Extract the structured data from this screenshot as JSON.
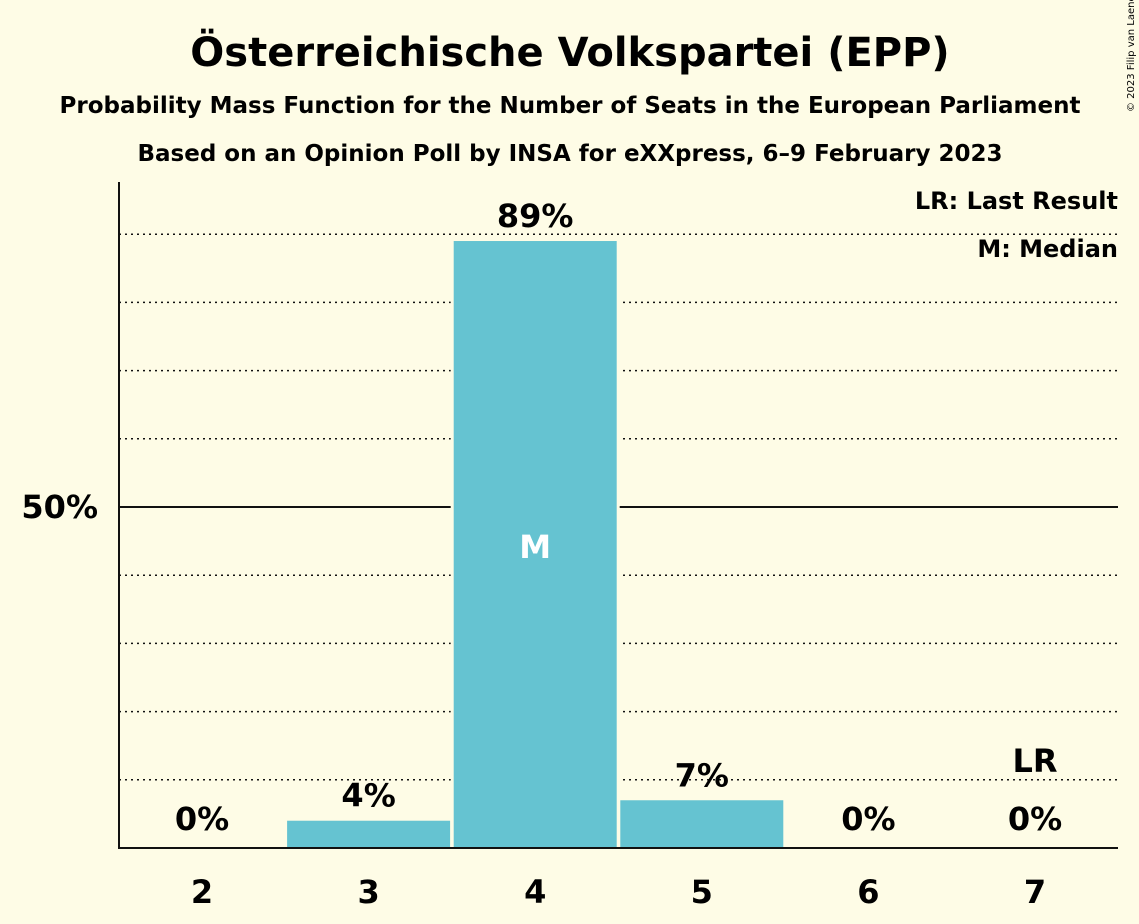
{
  "title": "Österreichische Volkspartei (EPP)",
  "subtitle1": "Probability Mass Function for the Number of Seats in the European Parliament",
  "subtitle2": "Based on an Opinion Poll by INSA for eXXpress, 6–9 February 2023",
  "copyright": "© 2023 Filip van Laenen",
  "legend": {
    "last_result": "LR: Last Result",
    "median": "M: Median"
  },
  "colors": {
    "background": "#fefce6",
    "bar": "#65c3d1",
    "text": "#111111"
  },
  "chart_data": {
    "type": "bar",
    "categories": [
      "2",
      "3",
      "4",
      "5",
      "6",
      "7"
    ],
    "values": [
      0,
      4,
      89,
      7,
      0,
      0
    ],
    "labels": [
      "0%",
      "4%",
      "89%",
      "7%",
      "0%",
      "0%"
    ],
    "ylim": [
      0,
      97
    ],
    "yticks": [
      {
        "value": 50,
        "label": "50%"
      }
    ],
    "minor_gridlines": [
      10,
      20,
      30,
      40,
      60,
      70,
      80,
      90
    ],
    "median_category": "4",
    "median_label": "M",
    "last_result_category": "7",
    "last_result_label": "LR",
    "legend_position": "top-right",
    "grid": true
  }
}
